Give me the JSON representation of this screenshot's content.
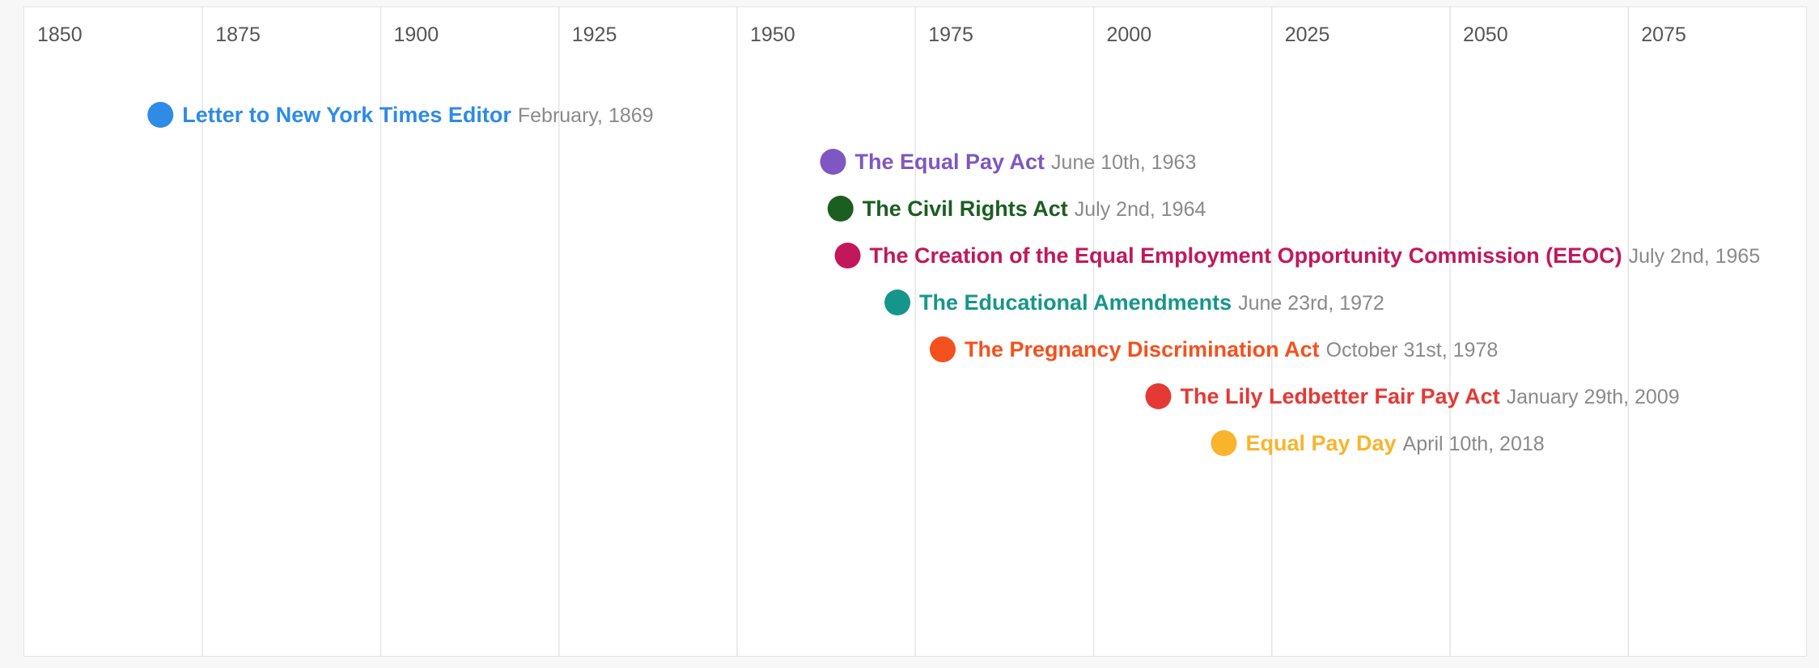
{
  "chart_data": {
    "type": "scatter",
    "subtype": "timeline",
    "title": "",
    "xlabel": "",
    "ylabel": "",
    "xlim": [
      1850,
      2100
    ],
    "x_ticks": [
      "1850",
      "1875",
      "1900",
      "1925",
      "1950",
      "1975",
      "2000",
      "2025",
      "2050",
      "2075"
    ],
    "grid": true,
    "legend": "none",
    "events": [
      {
        "title": "Letter to New York Times Editor",
        "date": "February, 1869",
        "year": 1869.1,
        "color": "#2e8be6"
      },
      {
        "title": "The Equal Pay Act",
        "date": "June 10th, 1963",
        "year": 1963.45,
        "color": "#7e57c2"
      },
      {
        "title": "The Civil Rights Act",
        "date": "July 2nd, 1964",
        "year": 1964.5,
        "color": "#1b5e20"
      },
      {
        "title": "The Creation of the Equal Employment Opportunity Commission (EEOC)",
        "date": "July 2nd, 1965",
        "year": 1965.5,
        "color": "#c2185b"
      },
      {
        "title": "The Educational Amendments",
        "date": "June 23rd, 1972",
        "year": 1972.48,
        "color": "#16968a"
      },
      {
        "title": "The Pregnancy Discrimination Act",
        "date": "October 31st, 1978",
        "year": 1978.83,
        "color": "#f4511e"
      },
      {
        "title": "The Lily Ledbetter Fair Pay Act",
        "date": "January 29th, 2009",
        "year": 2009.08,
        "color": "#e53935"
      },
      {
        "title": "Equal Pay Day",
        "date": "April 10th, 2018",
        "year": 2018.27,
        "color": "#f9b42d"
      }
    ]
  }
}
